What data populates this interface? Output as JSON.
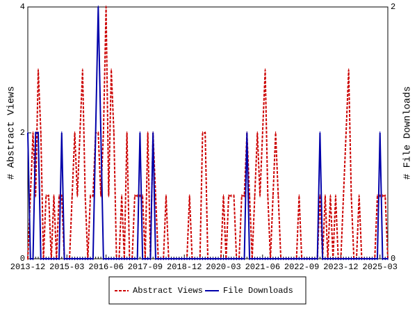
{
  "chart_data": {
    "type": "line",
    "y_label": "# Abstract Views",
    "y2_label": "# File Downloads",
    "categories": [
      "2013-12",
      null,
      null,
      null,
      null,
      null,
      null,
      null,
      null,
      null,
      null,
      null,
      null,
      null,
      null,
      "2015-03",
      null,
      null,
      null,
      null,
      null,
      null,
      null,
      null,
      null,
      null,
      null,
      null,
      null,
      null,
      "2016-06",
      null,
      null,
      null,
      null,
      null,
      null,
      null,
      null,
      null,
      null,
      null,
      null,
      null,
      null,
      "2017-09",
      null,
      null,
      null,
      null,
      null,
      null,
      null,
      null,
      null,
      null,
      null,
      null,
      null,
      null,
      "2018-12",
      null,
      null,
      null,
      null,
      null,
      null,
      null,
      null,
      null,
      null,
      null,
      null,
      null,
      null,
      "2020-03",
      null,
      null,
      null,
      null,
      null,
      null,
      null,
      null,
      null,
      null,
      null,
      null,
      null,
      null,
      "2021-06",
      null,
      null,
      null,
      null,
      null,
      null,
      null,
      null,
      null,
      null,
      null,
      null,
      null,
      null,
      "2022-09",
      null,
      null,
      null,
      null,
      null,
      null,
      null,
      null,
      null,
      null,
      null,
      null,
      null,
      null,
      "2023-12",
      null,
      null,
      null,
      null,
      null,
      null,
      null,
      null,
      null,
      null,
      null,
      null,
      null,
      null,
      "2025-03",
      null,
      null,
      null
    ],
    "series": [
      {
        "name": "Abstract Views",
        "color": "#cc0000",
        "dashed": true,
        "axis": "y",
        "values": [
          0,
          1,
          2,
          1,
          3,
          2,
          0,
          1,
          1,
          0,
          1,
          0,
          1,
          1,
          0,
          0,
          0,
          1,
          2,
          1,
          2,
          3,
          1,
          0,
          1,
          1,
          2,
          2,
          1,
          2,
          4,
          1,
          3,
          2,
          0,
          0,
          1,
          0,
          2,
          0,
          0,
          1,
          1,
          1,
          1,
          0,
          2,
          0,
          2,
          1,
          0,
          0,
          0,
          1,
          0,
          0,
          0,
          0,
          0,
          0,
          0,
          0,
          1,
          0,
          0,
          0,
          0,
          2,
          2,
          0,
          0,
          0,
          0,
          0,
          0,
          1,
          0,
          1,
          1,
          1,
          0,
          0,
          1,
          1,
          2,
          1,
          0,
          1,
          2,
          1,
          2,
          3,
          1,
          0,
          1,
          2,
          1,
          0,
          0,
          0,
          0,
          0,
          0,
          0,
          1,
          0,
          0,
          0,
          0,
          0,
          0,
          0,
          1,
          0,
          1,
          0,
          1,
          0,
          1,
          0,
          0,
          1,
          2,
          3,
          1,
          0,
          0,
          1,
          0,
          0,
          0,
          0,
          0,
          0,
          1,
          1,
          1,
          1,
          0
        ]
      },
      {
        "name": "File Downloads",
        "color": "#0000aa",
        "dashed": false,
        "axis": "y2",
        "values": [
          1,
          0,
          0,
          1,
          1,
          0,
          0,
          0,
          0,
          0,
          0,
          0,
          0,
          1,
          0,
          0,
          0,
          0,
          0,
          0,
          0,
          0,
          0,
          0,
          0,
          0,
          1,
          2,
          1,
          0,
          0,
          0,
          0,
          0,
          0,
          0,
          0,
          0,
          0,
          0,
          0,
          0,
          0,
          1,
          0,
          0,
          0,
          0,
          1,
          0,
          0,
          0,
          0,
          0,
          0,
          0,
          0,
          0,
          0,
          0,
          0,
          0,
          0,
          0,
          0,
          0,
          0,
          0,
          0,
          0,
          0,
          0,
          0,
          0,
          0,
          0,
          0,
          0,
          0,
          0,
          0,
          0,
          0,
          0,
          1,
          0,
          0,
          0,
          0,
          0,
          0,
          0,
          0,
          0,
          0,
          0,
          0,
          0,
          0,
          0,
          0,
          0,
          0,
          0,
          0,
          0,
          0,
          0,
          0,
          0,
          0,
          0,
          1,
          0,
          0,
          0,
          0,
          0,
          0,
          0,
          0,
          0,
          0,
          0,
          0,
          0,
          0,
          0,
          0,
          0,
          0,
          0,
          0,
          0,
          0,
          1,
          0,
          0,
          0
        ]
      }
    ],
    "ylim": [
      0,
      4
    ],
    "yticks": [
      0,
      2,
      4
    ],
    "y2lim": [
      0,
      2
    ],
    "y2ticks": [
      0,
      2
    ],
    "legend": "bottom"
  }
}
